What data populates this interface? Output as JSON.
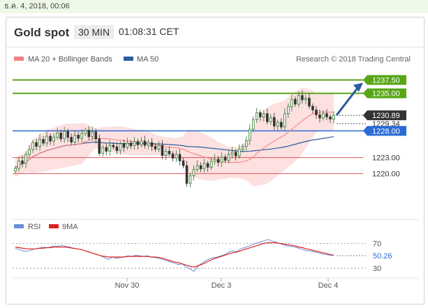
{
  "header": {
    "timestamp": "ธ.ค. 4, 2018, 00:06",
    "title": "Gold spot",
    "timeframe": "30 MIN",
    "clock": "01:08:31 CET"
  },
  "colors": {
    "up": "#2a7a2a",
    "down": "#333333",
    "ma20": "#f08080",
    "bollinger": "#fde0e0",
    "ma50": "#2b5c9e",
    "target": "#58a618",
    "support_blue": "#2a6bd6",
    "level_red": "#e05555",
    "rsi": "#6b8fd6",
    "rsi_ma": "#dd2222",
    "arrow": "#2b5c9e"
  },
  "chart_data": [
    {
      "type": "candlestick",
      "title": "Gold spot",
      "legend": [
        "MA 20 + Bollinger Bands",
        "MA 50"
      ],
      "watermark": "Research © 2018 Trading Central",
      "x_ticks": [
        "Nov 30",
        "Dec 3",
        "Dec 4"
      ],
      "ylim": [
        1212,
        1242
      ],
      "ohlc_close": [
        1221.0,
        1222.4,
        1221.9,
        1223.6,
        1224.5,
        1225.8,
        1225.1,
        1226.4,
        1225.7,
        1227.0,
        1226.1,
        1226.8,
        1227.6,
        1226.5,
        1227.9,
        1226.8,
        1225.9,
        1227.2,
        1226.6,
        1227.5,
        1228.1,
        1226.9,
        1227.8,
        1226.5,
        1223.8,
        1224.9,
        1224.2,
        1225.3,
        1225.0,
        1224.3,
        1225.6,
        1224.9,
        1225.7,
        1225.2,
        1226.0,
        1225.4,
        1226.1,
        1225.3,
        1225.8,
        1225.1,
        1224.6,
        1225.3,
        1223.4,
        1224.2,
        1223.7,
        1222.9,
        1223.6,
        1222.4,
        1221.5,
        1218.2,
        1219.6,
        1220.8,
        1221.5,
        1220.9,
        1221.9,
        1221.2,
        1222.3,
        1222.7,
        1222.1,
        1223.1,
        1222.5,
        1223.6,
        1224.0,
        1223.3,
        1224.6,
        1225.1,
        1226.2,
        1228.3,
        1230.1,
        1231.4,
        1230.6,
        1231.2,
        1229.7,
        1230.5,
        1228.9,
        1229.6,
        1228.7,
        1231.2,
        1232.5,
        1233.9,
        1233.0,
        1234.6,
        1233.8,
        1234.1,
        1232.6,
        1231.9,
        1231.0,
        1230.4,
        1231.2,
        1230.6,
        1230.2,
        1230.9
      ],
      "price_levels": [
        {
          "label": "1237.50",
          "value": 1237.5,
          "kind": "target"
        },
        {
          "label": "1235.00",
          "value": 1235.0,
          "kind": "target"
        },
        {
          "label": "1230.89",
          "value": 1230.89,
          "kind": "last"
        },
        {
          "label": "1229.34",
          "value": 1229.34,
          "kind": "ma50"
        },
        {
          "label": "1228.00",
          "value": 1228.0,
          "kind": "pivot"
        },
        {
          "label": "1223.00",
          "value": 1223.0,
          "kind": "support"
        },
        {
          "label": "1220.00",
          "value": 1220.0,
          "kind": "support"
        }
      ]
    },
    {
      "type": "line",
      "series_names": [
        "RSI",
        "9MA"
      ],
      "ylim": [
        20,
        85
      ],
      "y_ticks": [
        "70",
        "50.26",
        "30"
      ],
      "tick_values": [
        70,
        50.26,
        30
      ],
      "current": "50.26",
      "rsi_values": [
        62,
        60,
        58,
        57,
        59,
        61,
        62,
        64,
        63,
        64,
        66,
        65,
        67,
        65,
        64,
        62,
        61,
        60,
        58,
        56,
        54,
        52,
        50,
        47,
        44,
        48,
        46,
        47,
        48,
        50,
        49,
        51,
        50,
        49,
        50,
        48,
        47,
        46,
        44,
        42,
        40,
        38,
        36,
        37,
        32,
        29,
        25,
        33,
        38,
        42,
        45,
        47,
        48,
        50,
        52,
        56,
        58,
        57,
        61,
        63,
        65,
        68,
        70,
        72,
        74,
        76,
        74,
        72,
        70,
        68,
        66,
        65,
        64,
        62,
        60,
        58,
        58,
        56,
        55,
        53,
        52,
        51,
        50.3
      ],
      "ma_values": [
        64,
        63,
        62,
        61,
        61,
        61,
        62,
        62,
        63,
        63,
        64,
        64,
        64,
        64,
        63,
        62,
        61,
        60,
        58,
        56,
        54,
        52,
        50,
        49,
        48,
        48,
        48,
        48,
        48,
        49,
        49,
        49,
        49,
        49,
        49,
        48,
        48,
        47,
        46,
        44,
        42,
        40,
        39,
        37,
        35,
        33,
        32,
        34,
        36,
        39,
        42,
        45,
        47,
        49,
        51,
        53,
        55,
        56,
        58,
        60,
        62,
        64,
        66,
        68,
        70,
        71,
        71,
        71,
        70,
        69,
        68,
        67,
        66,
        64,
        63,
        61,
        60,
        58,
        57,
        55,
        54,
        52,
        51
      ]
    }
  ]
}
